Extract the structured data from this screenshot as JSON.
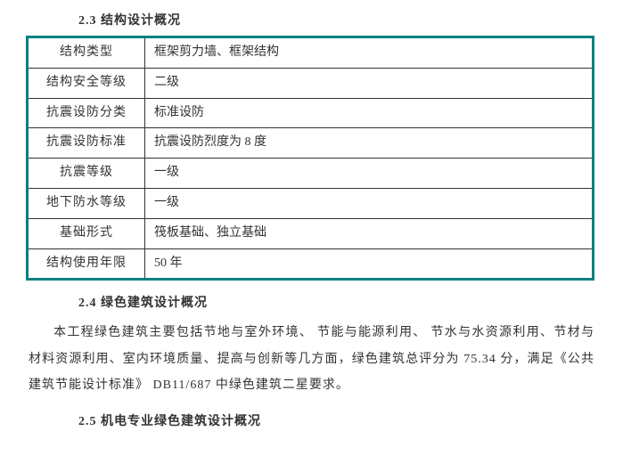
{
  "section23": {
    "heading": "2.3  结构设计概况"
  },
  "table": {
    "border_color": "#008080",
    "cell_border_color": "#333333",
    "rows": [
      {
        "label": "结构类型",
        "value": "框架剪力墙、框架结构"
      },
      {
        "label": "结构安全等级",
        "value": "二级"
      },
      {
        "label": "抗震设防分类",
        "value": "标准设防"
      },
      {
        "label": "抗震设防标准",
        "value": "抗震设防烈度为  8 度"
      },
      {
        "label": "抗震等级",
        "value": "一级"
      },
      {
        "label": "地下防水等级",
        "value": "一级"
      },
      {
        "label": "基础形式",
        "value": "筏板基础、独立基础"
      },
      {
        "label": "结构使用年限",
        "value": "50 年"
      }
    ]
  },
  "section24": {
    "heading": "2.4  绿色建筑设计概况",
    "paragraph": "本工程绿色建筑主要包括节地与室外环境、  节能与能源利用、 节水与水资源利用、节材与材料资源利用、室内环境质量、提高与创新等几方面，绿色建筑总评分为  75.34  分，满足《公共建筑节能设计标准》   DB11/687 中绿色建筑二星要求。"
  },
  "section25": {
    "heading": "2.5  机电专业绿色建筑设计概况"
  }
}
